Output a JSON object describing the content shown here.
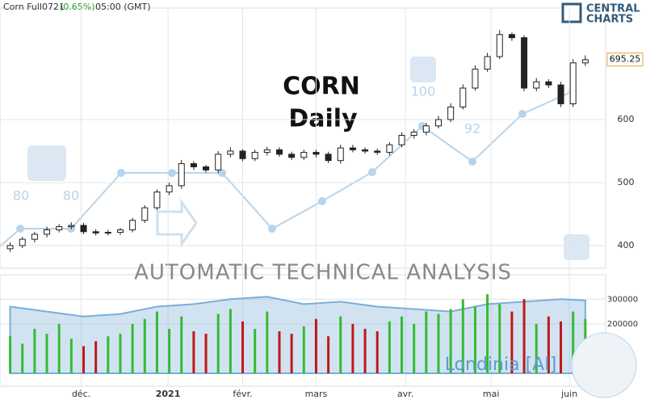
{
  "header": {
    "symbol": "Corn Full0721",
    "change": "(0.65%)",
    "time": "05:00 (GMT)"
  },
  "logo": {
    "line1": "CENTRAL",
    "line2": "CHARTS"
  },
  "chart_data": [
    {
      "type": "candlestick",
      "title": "CORN",
      "subtitle": "Daily",
      "banner": "AUTOMATIC TECHNICAL ANALYSIS",
      "indicator_labels": [
        "80",
        "80",
        "100",
        "92"
      ],
      "last_price": {
        "value": 695.25,
        "label": "695.25"
      },
      "x": [
        0,
        1,
        2,
        3,
        4,
        5,
        6,
        7,
        8,
        9,
        10,
        11,
        12,
        13,
        14,
        15,
        16,
        17,
        18,
        19,
        20,
        21,
        22,
        23,
        24,
        25,
        26,
        27,
        28,
        29,
        30,
        31,
        32,
        33,
        34,
        35,
        36,
        37,
        38,
        39,
        40,
        41,
        42,
        43,
        44,
        45,
        46,
        47
      ],
      "open": [
        395,
        400,
        410,
        418,
        425,
        430,
        432,
        422,
        420,
        421,
        425,
        440,
        460,
        485,
        495,
        530,
        525,
        520,
        545,
        550,
        538,
        548,
        552,
        545,
        540,
        548,
        545,
        535,
        555,
        552,
        550,
        548,
        560,
        575,
        580,
        590,
        600,
        620,
        650,
        680,
        700,
        735,
        730,
        650,
        660,
        655,
        625,
        690
      ],
      "high": [
        405,
        414,
        422,
        430,
        434,
        437,
        436,
        426,
        425,
        428,
        444,
        464,
        489,
        500,
        536,
        534,
        528,
        550,
        556,
        553,
        552,
        557,
        556,
        549,
        552,
        552,
        549,
        560,
        560,
        556,
        554,
        564,
        580,
        585,
        595,
        606,
        626,
        656,
        686,
        706,
        742,
        738,
        734,
        666,
        664,
        660,
        696,
        702
      ],
      "low": [
        390,
        396,
        405,
        413,
        421,
        426,
        418,
        416,
        416,
        417,
        421,
        436,
        456,
        480,
        490,
        520,
        516,
        515,
        540,
        534,
        534,
        543,
        541,
        536,
        536,
        540,
        531,
        530,
        548,
        546,
        544,
        543,
        556,
        570,
        575,
        586,
        596,
        616,
        646,
        676,
        696,
        725,
        645,
        645,
        650,
        620,
        620,
        685
      ],
      "close": [
        400,
        410,
        418,
        425,
        430,
        432,
        422,
        420,
        421,
        425,
        440,
        460,
        485,
        495,
        530,
        525,
        520,
        545,
        550,
        538,
        548,
        552,
        545,
        540,
        548,
        545,
        535,
        555,
        552,
        550,
        548,
        560,
        575,
        580,
        590,
        600,
        620,
        650,
        680,
        700,
        735,
        730,
        650,
        660,
        655,
        625,
        690,
        695
      ],
      "xlim": [
        -0.5,
        48
      ],
      "ylim": [
        364,
        777
      ],
      "yticks": [
        400,
        500,
        600
      ],
      "xticks": [
        {
          "value": 5.8,
          "label": "déc."
        },
        {
          "value": 12.9,
          "label": "2021"
        },
        {
          "value": 19,
          "label": "févr."
        },
        {
          "value": 25,
          "label": "mars"
        },
        {
          "value": 32.3,
          "label": "avr."
        },
        {
          "value": 39.3,
          "label": "mai"
        },
        {
          "value": 45.7,
          "label": "juin"
        }
      ],
      "up_color": "#2ea12e",
      "down_color": "#d02020"
    },
    {
      "type": "volume",
      "watermark": "Londinia [AI]",
      "values": [
        150000,
        120000,
        180000,
        160000,
        200000,
        140000,
        110000,
        130000,
        150000,
        160000,
        200000,
        220000,
        250000,
        180000,
        230000,
        170000,
        160000,
        240000,
        260000,
        210000,
        180000,
        250000,
        170000,
        160000,
        190000,
        220000,
        150000,
        230000,
        200000,
        180000,
        170000,
        210000,
        230000,
        200000,
        250000,
        240000,
        260000,
        300000,
        270000,
        320000,
        280000,
        250000,
        300000,
        200000,
        230000,
        210000,
        250000,
        220000
      ],
      "open_interest_x": [
        0,
        3,
        6,
        9,
        12,
        15,
        18,
        21,
        24,
        27,
        30,
        33,
        36,
        39,
        42,
        45,
        47
      ],
      "open_interest": [
        270000,
        250000,
        230000,
        240000,
        270000,
        280000,
        300000,
        310000,
        280000,
        290000,
        270000,
        260000,
        250000,
        280000,
        290000,
        300000,
        295000
      ],
      "ylim": [
        0,
        350000
      ],
      "yticks": [
        200000,
        300000
      ],
      "up_color": "#33bb33",
      "down_color": "#c01818",
      "oi_color": "#7aaed8"
    }
  ]
}
